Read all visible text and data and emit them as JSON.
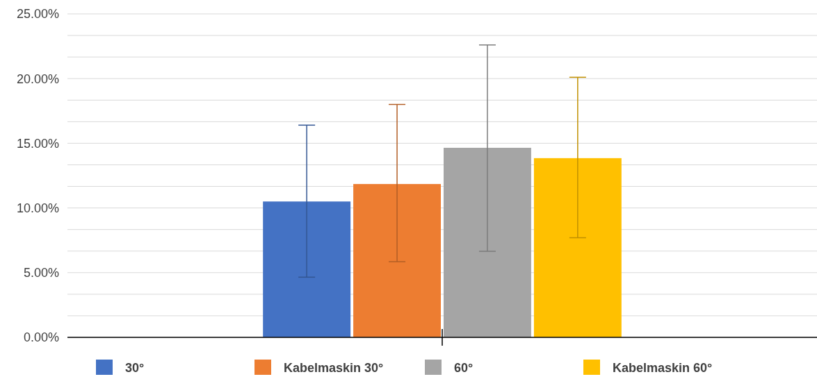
{
  "chart_data": {
    "type": "bar",
    "categories": [
      null
    ],
    "series": [
      {
        "name": "30°",
        "color": "#4472c4",
        "values": [
          10.5
        ],
        "errors": [
          [
            4.65,
            16.4
          ]
        ]
      },
      {
        "name": "Kabelmaskin 30°",
        "color": "#ed7d31",
        "values": [
          11.85
        ],
        "errors": [
          [
            5.85,
            18.0
          ]
        ]
      },
      {
        "name": "60°",
        "color": "#a5a5a5",
        "values": [
          14.65
        ],
        "errors": [
          [
            6.65,
            22.6
          ]
        ]
      },
      {
        "name": "Kabelmaskin 60°",
        "color": "#ffc000",
        "values": [
          13.85
        ],
        "errors": [
          [
            7.7,
            20.1
          ]
        ]
      }
    ],
    "ylim": [
      0,
      25
    ],
    "yticks": [
      {
        "value": 0,
        "label": "0.00%"
      },
      {
        "value": 1.6667,
        "label": null
      },
      {
        "value": 3.3333,
        "label": null
      },
      {
        "value": 5,
        "label": "5.00%"
      },
      {
        "value": 6.6667,
        "label": null
      },
      {
        "value": 8.3333,
        "label": null
      },
      {
        "value": 10,
        "label": "10.00%"
      },
      {
        "value": 11.6667,
        "label": null
      },
      {
        "value": 13.3333,
        "label": null
      },
      {
        "value": 15,
        "label": "15.00%"
      },
      {
        "value": 16.6667,
        "label": null
      },
      {
        "value": 18.3333,
        "label": null
      },
      {
        "value": 20,
        "label": "20.00%"
      },
      {
        "value": 21.6667,
        "label": null
      },
      {
        "value": 23.3333,
        "label": null
      },
      {
        "value": 25,
        "label": "25.00%"
      }
    ],
    "grid": "y",
    "legend": "bottom"
  }
}
